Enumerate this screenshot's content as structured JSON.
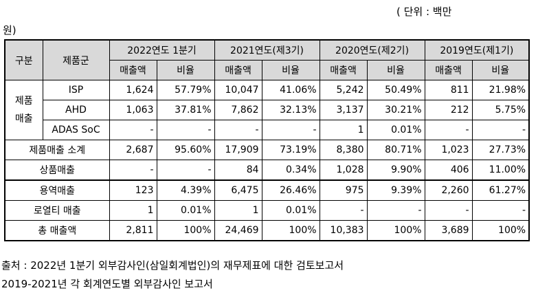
{
  "unit": {
    "line1": "( 단위 : 백만",
    "line2": "원)"
  },
  "headers": {
    "category": "구분",
    "product_group": "제품군",
    "periods": [
      "2022연도 1분기",
      "2021연도(제3기)",
      "2020연도(제2기)",
      "2019연도(제1기)"
    ],
    "sales": "매출액",
    "ratio": "비율"
  },
  "product_sales_label": "제품\n매출",
  "product_rows": [
    {
      "name": "ISP",
      "values": [
        "1,624",
        "57.79%",
        "10,047",
        "41.06%",
        "5,242",
        "50.49%",
        "811",
        "21.98%"
      ]
    },
    {
      "name": "AHD",
      "values": [
        "1,063",
        "37.81%",
        "7,862",
        "32.13%",
        "3,137",
        "30.21%",
        "212",
        "5.75%"
      ]
    },
    {
      "name": "ADAS SoC",
      "values": [
        "-",
        "-",
        "-",
        "-",
        "1",
        "0.01%",
        "-",
        "-"
      ]
    }
  ],
  "other_rows": [
    {
      "name": "제품매출 소계",
      "values": [
        "2,687",
        "95.60%",
        "17,909",
        "73.19%",
        "8,380",
        "80.71%",
        "1,023",
        "27.73%"
      ]
    },
    {
      "name": "상품매출",
      "values": [
        "-",
        "-",
        "84",
        "0.34%",
        "1,028",
        "9.90%",
        "406",
        "11.00%"
      ]
    },
    {
      "name": "용역매출",
      "values": [
        "123",
        "4.39%",
        "6,475",
        "26.46%",
        "975",
        "9.39%",
        "2,260",
        "61.27%"
      ]
    },
    {
      "name": "로열티 매출",
      "values": [
        "1",
        "0.01%",
        "1",
        "0.01%",
        "-",
        "-",
        "-",
        "-"
      ]
    },
    {
      "name": "총 매출액",
      "values": [
        "2,811",
        "100%",
        "24,469",
        "100%",
        "10,383",
        "100%",
        "3,689",
        "100%"
      ]
    }
  ],
  "source": {
    "line1": "출처 : 2022년 1분기 외부감사인(삼일회계법인)의 재무제표에 대한 검토보고서",
    "line2": "2019-2021년 각 회계연도별 외부감사인 보고서"
  }
}
